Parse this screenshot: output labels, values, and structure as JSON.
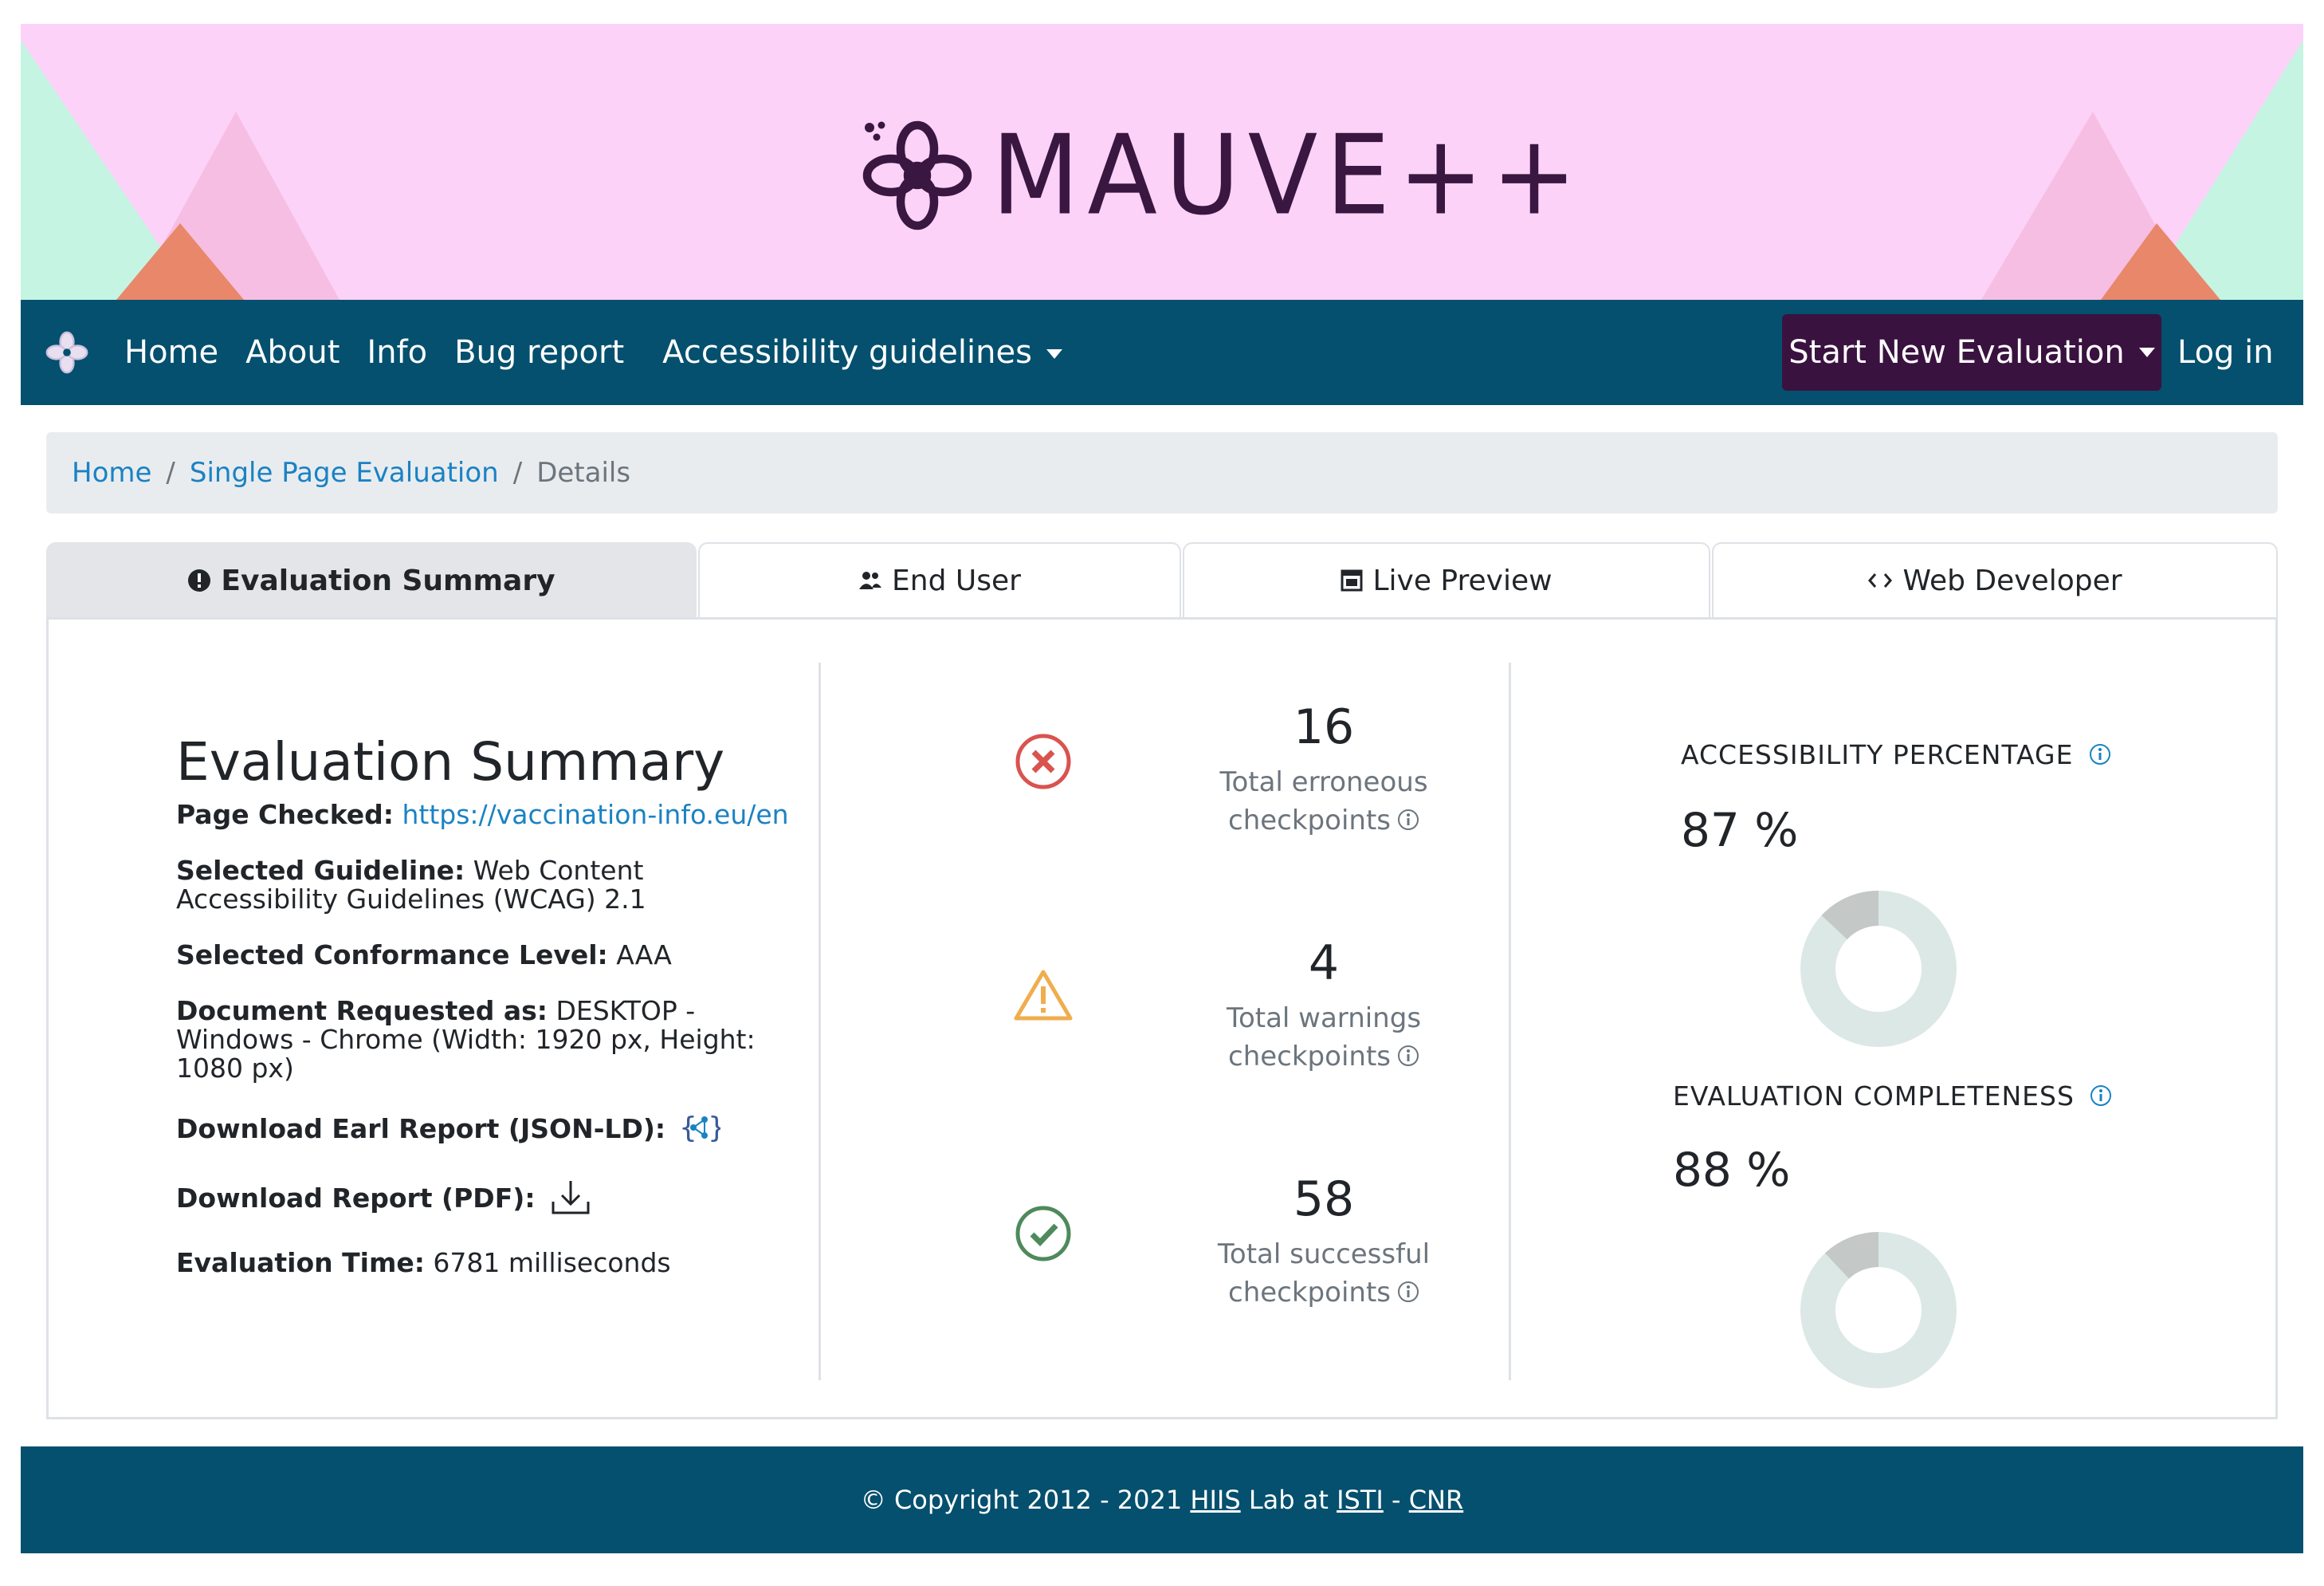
{
  "app": {
    "logo_text": "MAUVE++"
  },
  "nav": {
    "links": [
      "Home",
      "About",
      "Info",
      "Bug report"
    ],
    "guidelines_label": "Accessibility guidelines",
    "start_label": "Start New Evaluation",
    "login_label": "Log in"
  },
  "breadcrumb": {
    "home": "Home",
    "sep": "/",
    "single": "Single Page Evaluation",
    "details": "Details"
  },
  "tabs": [
    {
      "label": "Evaluation Summary",
      "icon": "exclamation-circle-icon"
    },
    {
      "label": "End User",
      "icon": "users-icon"
    },
    {
      "label": "Live Preview",
      "icon": "window-icon"
    },
    {
      "label": "Web Developer",
      "icon": "code-icon"
    }
  ],
  "summary": {
    "title": "Evaluation Summary",
    "page_checked_label": "Page Checked:",
    "page_checked_url": "https://vaccination-info.eu/en",
    "guideline_label": "Selected Guideline:",
    "guideline_value": "Web Content Accessibility Guidelines (WCAG) 2.1",
    "conformance_label": "Selected Conformance Level:",
    "conformance_value": "AAA",
    "document_label": "Document Requested as:",
    "document_value": "DESKTOP - Windows - Chrome (Width: 1920 px, Height: 1080 px)",
    "earl_label": "Download Earl Report (JSON-LD):",
    "pdf_label": "Download Report (PDF):",
    "time_label": "Evaluation Time:",
    "time_value": "6781 milliseconds"
  },
  "stats": {
    "errors": {
      "value": "16",
      "label1": "Total erroneous",
      "label2": "checkpoints",
      "color": "#d9534f"
    },
    "warnings": {
      "value": "4",
      "label1": "Total warnings",
      "label2": "checkpoints",
      "color": "#f0ad4e"
    },
    "success": {
      "value": "58",
      "label1": "Total successful",
      "label2": "checkpoints",
      "color": "#4e8a5c"
    }
  },
  "metrics": {
    "accessibility": {
      "title": "ACCESSIBILITY PERCENTAGE",
      "value_text": "87 %",
      "value": 87
    },
    "completeness": {
      "title": "EVALUATION COMPLETENESS",
      "value_text": "88 %",
      "value": 88
    }
  },
  "footer": {
    "prefix": "© Copyright 2012 - 2021",
    "hiis": "HIIS",
    "lab_at": "Lab at",
    "isti": "ISTI",
    "dash": "-",
    "cnr": "CNR"
  },
  "colors": {
    "banner": "#fdd2f8",
    "nav": "#04506e",
    "start_button": "#3a1240",
    "link": "#1a82c4",
    "donut": "#dce8e6",
    "donut_gap": "#c4c8c6"
  }
}
